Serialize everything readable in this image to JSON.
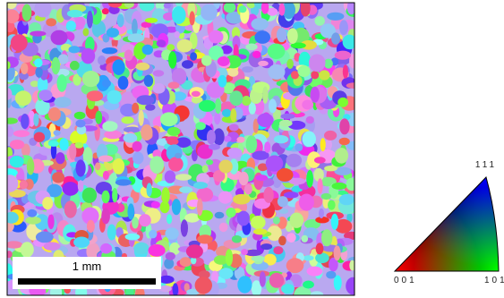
{
  "scale_bar": {
    "label": "1 mm"
  },
  "ipf_legend": {
    "top": "111",
    "bottom_left": "001",
    "bottom_right": "101"
  }
}
